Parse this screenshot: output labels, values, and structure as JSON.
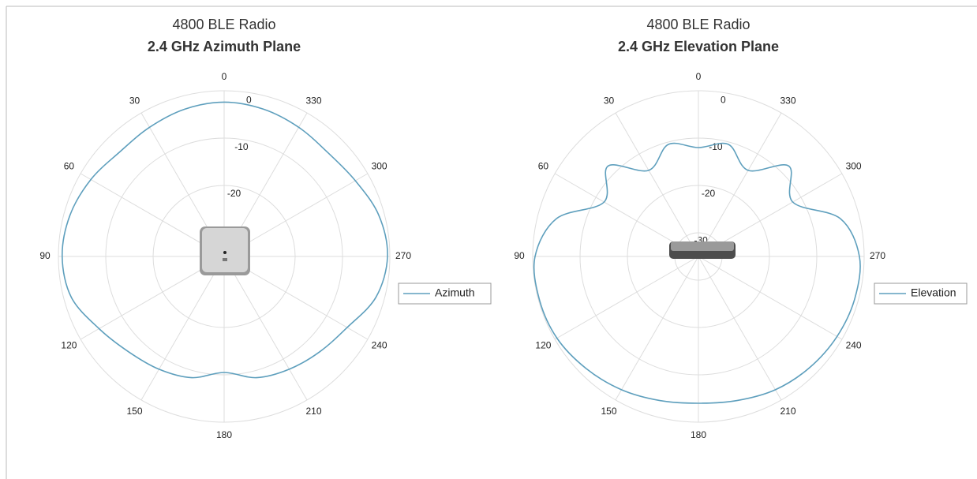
{
  "chart_data": [
    {
      "type": "polar",
      "title": "4800 BLE Radio",
      "subtitle": "2.4 GHz Azimuth Plane",
      "theta_zero": "N",
      "theta_direction": "counterclockwise",
      "theta": [
        0,
        15,
        30,
        45,
        60,
        75,
        90,
        105,
        120,
        135,
        150,
        165,
        180,
        195,
        210,
        225,
        240,
        255,
        270,
        285,
        300,
        315,
        330,
        345
      ],
      "series": [
        {
          "name": "Azimuth",
          "color": "#5e9fbd",
          "values": [
            -2.4,
            -2.8,
            -3.5,
            -3.8,
            -2.5,
            -1.3,
            -0.8,
            -1.6,
            -4.5,
            -6.5,
            -7.5,
            -8.5,
            -10.5,
            -8.5,
            -7.5,
            -6.5,
            -5,
            -1.8,
            -0.5,
            -1.2,
            -3,
            -4,
            -3.5,
            -2.8
          ]
        }
      ],
      "rlim": [
        -35,
        0
      ],
      "rticks": [
        0,
        -10,
        -20
      ],
      "thetaticks": [
        0,
        30,
        60,
        90,
        120,
        150,
        180,
        210,
        240,
        270,
        300,
        330
      ],
      "grid": true,
      "legend": "right"
    },
    {
      "type": "polar",
      "title": "4800 BLE Radio",
      "subtitle": "2.4 GHz Elevation Plane",
      "theta_zero": "N",
      "theta_direction": "counterclockwise",
      "theta": [
        0,
        15,
        30,
        45,
        60,
        75,
        90,
        105,
        120,
        135,
        150,
        165,
        180,
        195,
        210,
        225,
        240,
        255,
        270,
        285,
        300,
        315,
        330,
        345
      ],
      "series": [
        {
          "name": "Elevation",
          "color": "#5e9fbd",
          "values": [
            -12,
            -10.5,
            -14,
            -8,
            -12,
            -4,
            -0.5,
            -0.2,
            -0.5,
            -1.5,
            -2.5,
            -3.5,
            -4,
            -3.5,
            -2.5,
            -1.8,
            -1.2,
            -0.8,
            -1,
            -4,
            -12,
            -8,
            -14,
            -10.5
          ]
        }
      ],
      "rlim": [
        -35,
        0
      ],
      "rticks": [
        0,
        -10,
        -20,
        -30
      ],
      "thetaticks": [
        0,
        30,
        60,
        90,
        120,
        150,
        180,
        210,
        240,
        270,
        300,
        330
      ],
      "grid": true,
      "legend": "right"
    }
  ]
}
